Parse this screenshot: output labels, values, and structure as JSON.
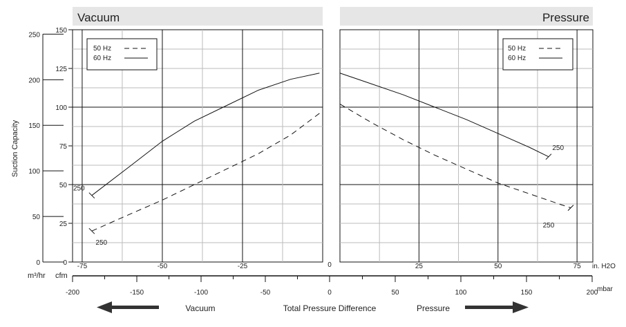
{
  "chart_data": [
    {
      "panel": "vacuum",
      "type": "line",
      "title": "Vacuum",
      "ylabel": "Suction Capacity",
      "y_units": [
        "m³/hr",
        "cfm"
      ],
      "x_units": "in. H2O",
      "x_ticks": [
        "-75",
        "-50",
        "-25",
        "0"
      ],
      "x_tick_values": [
        -75,
        -50,
        -25,
        0
      ],
      "xlim": [
        -78,
        0
      ],
      "ylim_cfm": [
        0,
        150
      ],
      "cfm_ticks": [
        "0",
        "25",
        "50",
        "75",
        "100",
        "125",
        "150"
      ],
      "m3hr_ticks": [
        "0",
        "50",
        "100",
        "150",
        "200",
        "250"
      ],
      "legend": [
        {
          "label": "50 Hz",
          "style": "dashed"
        },
        {
          "label": "60 Hz",
          "style": "solid"
        }
      ],
      "legend_position": "top-left",
      "series": [
        {
          "name": "60 Hz",
          "style": "solid",
          "x": [
            -72,
            -60,
            -50,
            -40,
            -30,
            -20,
            -10,
            -1
          ],
          "y": [
            43,
            62,
            78,
            91,
            101,
            111,
            118,
            122
          ]
        },
        {
          "name": "50 Hz",
          "style": "dashed",
          "x": [
            -72,
            -60,
            -50,
            -40,
            -30,
            -20,
            -10,
            -1
          ],
          "y": [
            20,
            31,
            40,
            50,
            60,
            70,
            82,
            96
          ]
        }
      ],
      "annotations": [
        {
          "text": "250",
          "x": -76,
          "y": 48
        },
        {
          "text": "250",
          "x": -69,
          "y": 13
        }
      ]
    },
    {
      "panel": "pressure",
      "type": "line",
      "title": "Pressure",
      "x_units": "in. H2O",
      "x_ticks": [
        "25",
        "50",
        "75"
      ],
      "x_tick_values": [
        25,
        50,
        75
      ],
      "xlim": [
        0,
        80
      ],
      "ylim_cfm": [
        0,
        150
      ],
      "legend": [
        {
          "label": "50 Hz",
          "style": "dashed"
        },
        {
          "label": "60 Hz",
          "style": "solid"
        }
      ],
      "legend_position": "top-right",
      "series": [
        {
          "name": "60 Hz",
          "style": "solid",
          "x": [
            0,
            10,
            20,
            30,
            40,
            50,
            60,
            66
          ],
          "y": [
            122,
            115,
            108,
            100,
            92,
            83,
            74,
            68
          ]
        },
        {
          "name": "50 Hz",
          "style": "dashed",
          "x": [
            0,
            10,
            20,
            30,
            40,
            50,
            60,
            70,
            73
          ],
          "y": [
            102,
            90,
            79,
            69,
            60,
            51,
            44,
            37,
            35
          ]
        }
      ],
      "annotations": [
        {
          "text": "250",
          "x": 69,
          "y": 74
        },
        {
          "text": "250",
          "x": 66,
          "y": 24
        }
      ]
    }
  ],
  "ylabel": "Suction Capacity",
  "y_unit_m3hr": "m³/hr",
  "y_unit_cfm": "cfm",
  "x_unit_inh2o": "in. H2O",
  "x_unit_mbar": "mbar",
  "mbar_axis": {
    "ticks": [
      "-200",
      "-150",
      "-100",
      "-50",
      "0",
      "50",
      "100",
      "150",
      "200"
    ],
    "values": [
      -200,
      -150,
      -100,
      -50,
      0,
      50,
      100,
      150,
      200
    ]
  },
  "zero_label": "0",
  "bottom_labels": {
    "vacuum": "Vacuum",
    "center": "Total Pressure Difference",
    "pressure": "Pressure"
  },
  "colors": {
    "line": "#111111",
    "grid_major": "#111111",
    "grid_minor": "#bbbbbb",
    "header_bg": "#e6e6e6",
    "arrow": "#333333"
  }
}
